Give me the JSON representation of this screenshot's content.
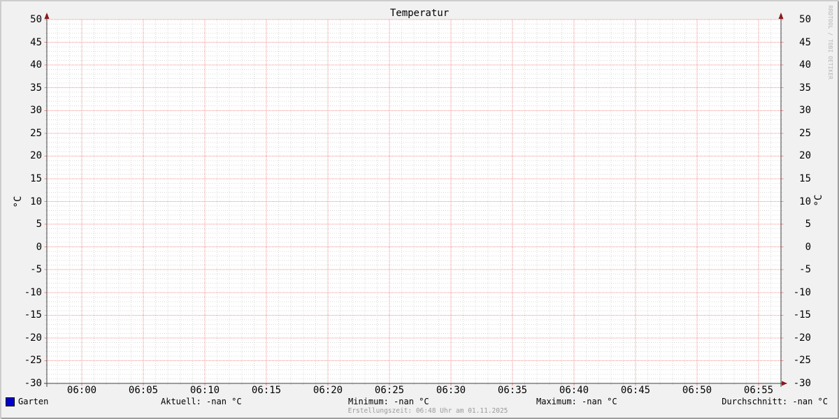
{
  "watermark": "RRDTOOL / TOBI OETIKER",
  "colors": {
    "background": "#f1f1f1",
    "canvas": "#ffffff",
    "major_grid": "#f28a8a",
    "minor_grid": "#d8d8d8",
    "axis": "#404040",
    "arrow": "#8b1a1a",
    "series": "#0000cc",
    "muted_text": "#9a9a9a",
    "border_light": "#cdcdcd",
    "border_dark": "#9e9e9e"
  },
  "legend": {
    "series_label": "Garten",
    "series_color": "#0000cc",
    "stats": {
      "aktuell": "Aktuell: -nan °C",
      "minimum": "Minimum: -nan °C",
      "maximum": "Maximum: -nan °C",
      "durchschnitt": "Durchschnitt: -nan °C"
    }
  },
  "chart_data": {
    "type": "line",
    "title": "Temperatur",
    "ylabel": "°C",
    "ylabel_right": "°C",
    "ylim": [
      -30,
      50
    ],
    "y_tick_step": 5,
    "y_minor_step": 1,
    "y_tick_labels": [
      "50",
      "45",
      "40",
      "35",
      "30",
      "25",
      "20",
      "15",
      "10",
      "5",
      "0",
      "-5",
      "-10",
      "-15",
      "-20",
      "-25",
      "-30"
    ],
    "x_tick_labels": [
      "06:00",
      "06:05",
      "06:10",
      "06:15",
      "06:20",
      "06:25",
      "06:30",
      "06:35",
      "06:40",
      "06:45",
      "06:50",
      "06:55"
    ],
    "x_minor_per_major": 5,
    "grid": true,
    "legend_position": "bottom",
    "series": [
      {
        "name": "Garten",
        "color": "#0000cc",
        "values": [],
        "current": "-nan °C",
        "min": "-nan °C",
        "max": "-nan °C",
        "avg": "-nan °C"
      }
    ],
    "annotations": [
      "Erstellungszeit: 06:48 Uhr am 01.11.2025"
    ]
  }
}
